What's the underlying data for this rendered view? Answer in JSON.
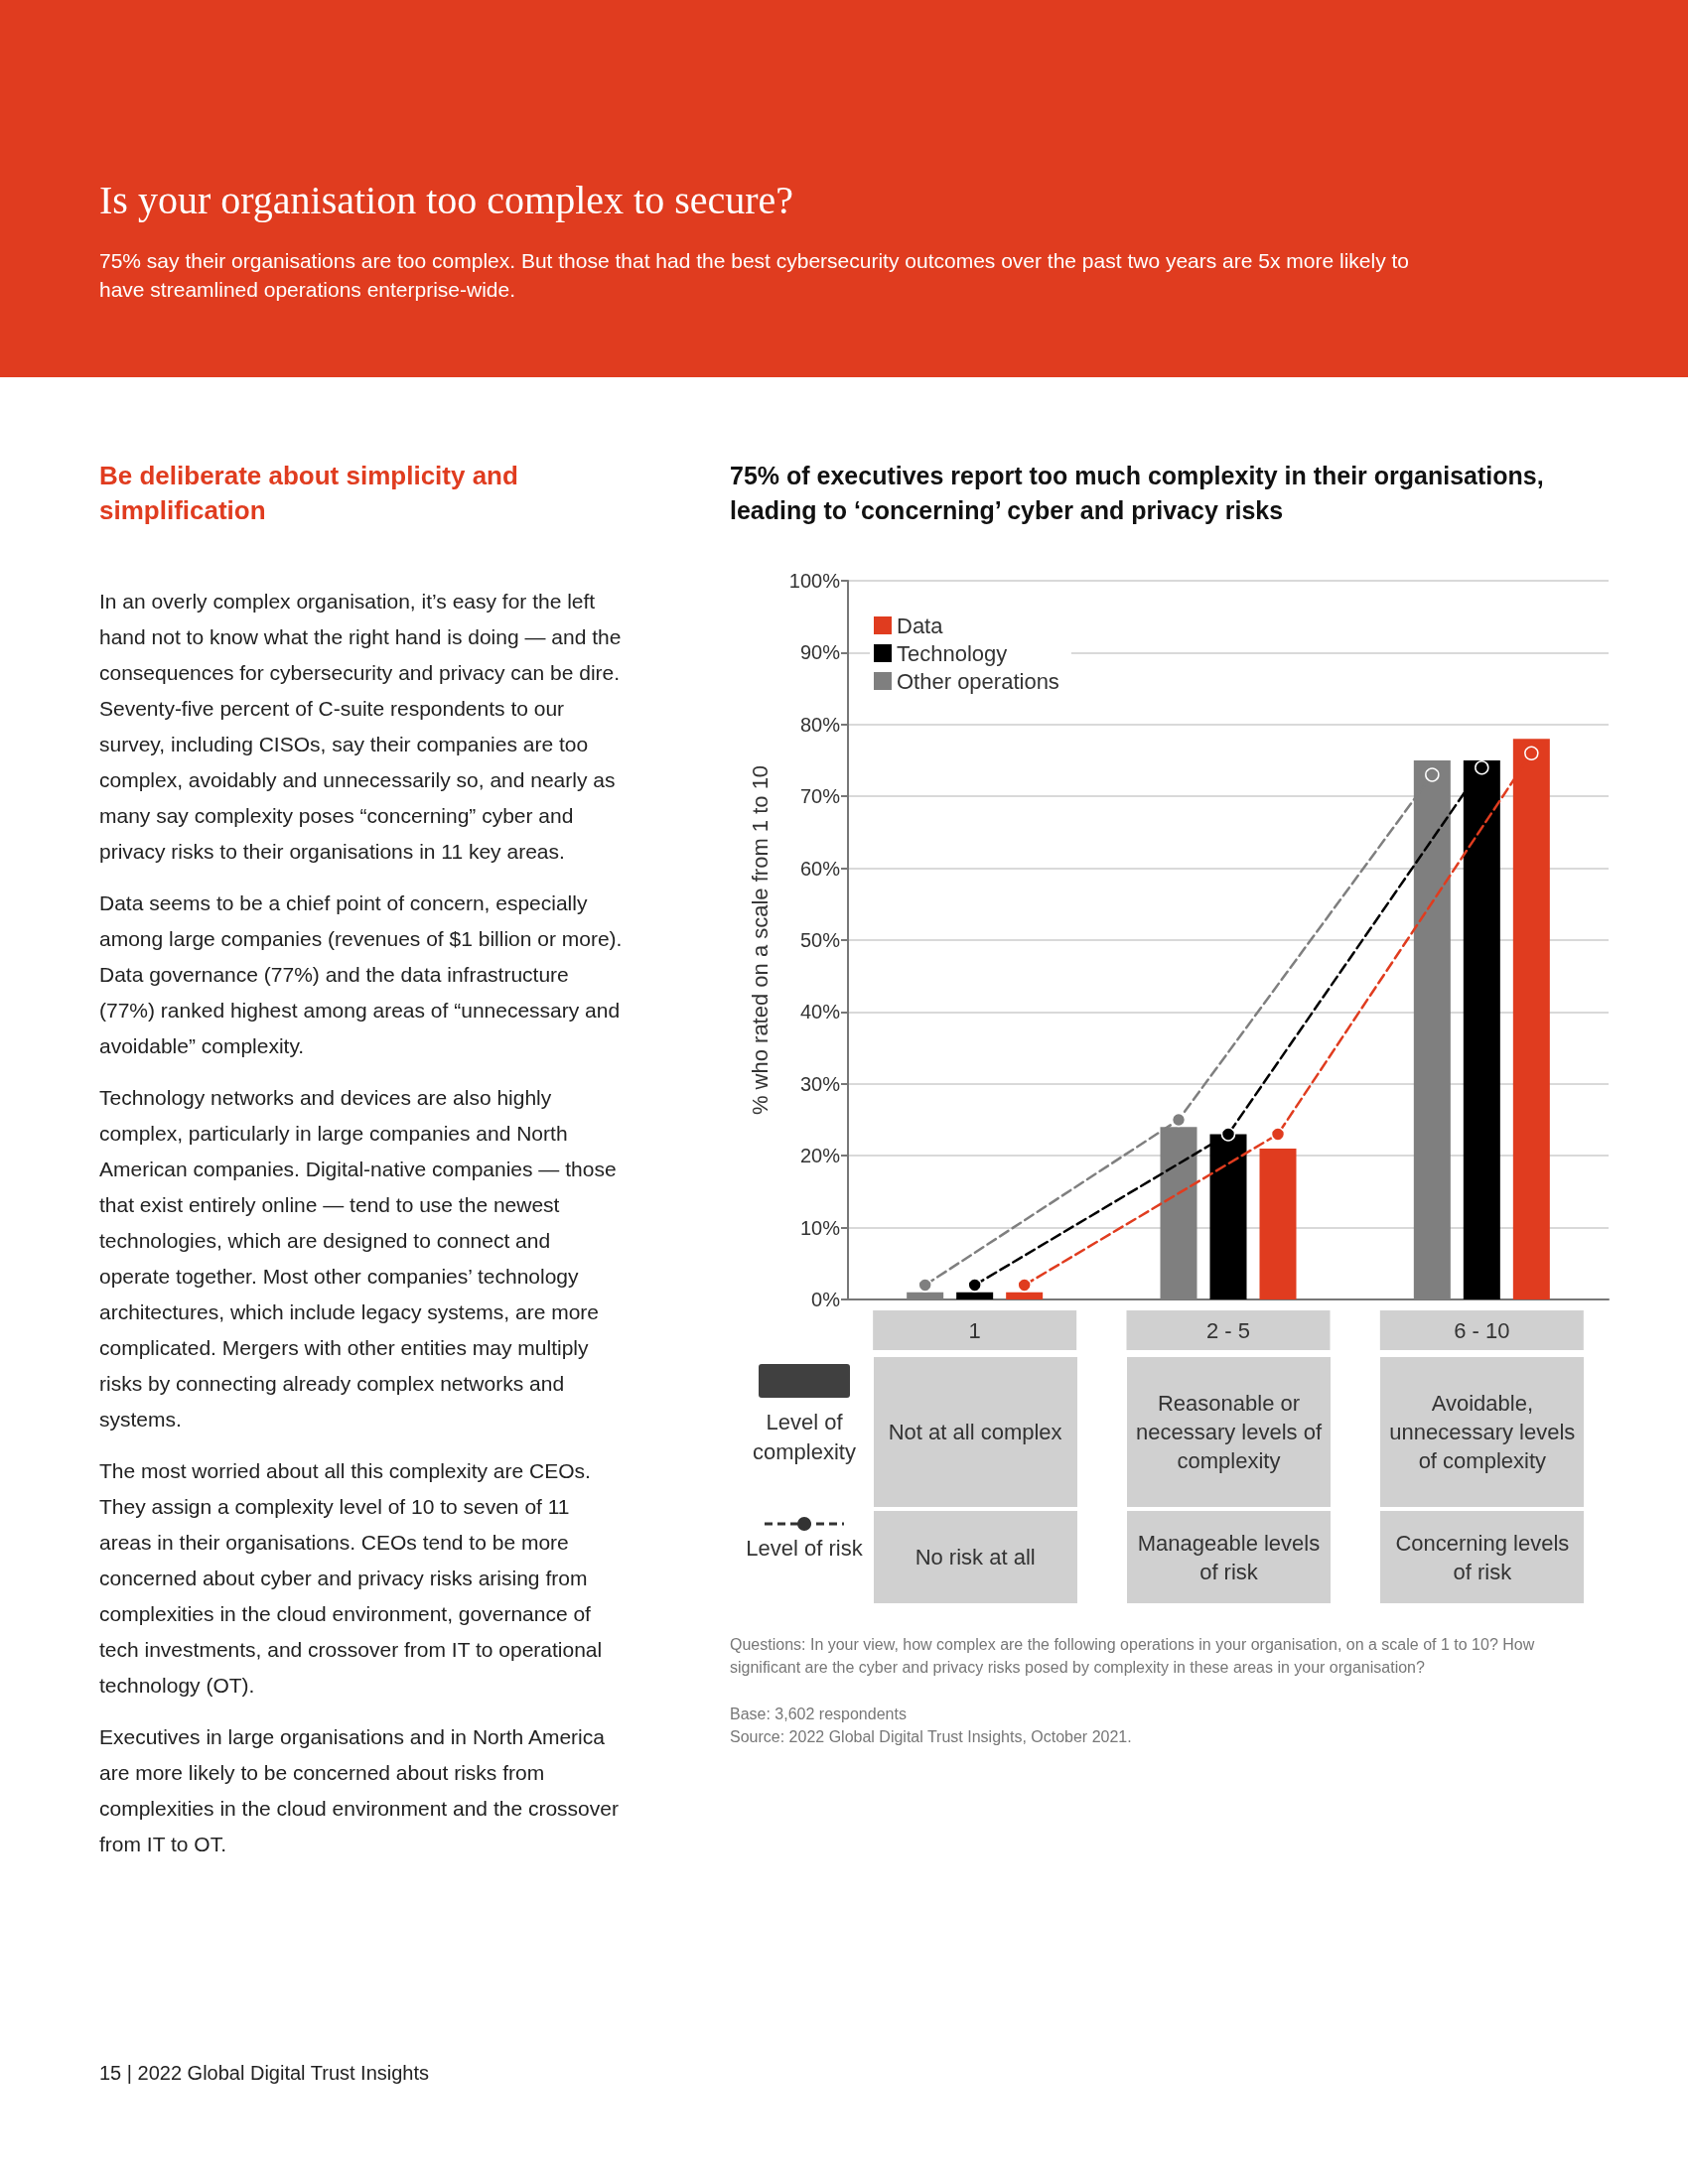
{
  "chart_data": {
    "type": "bar",
    "title": "75% of executives report too much complexity in their organisations, leading to ‘concerning’ cyber and privacy risks",
    "ylabel": "% who rated on a scale from 1 to 10",
    "categories": [
      "1",
      "2 - 5",
      "6 - 10"
    ],
    "series": [
      {
        "name": "Other operations",
        "color": "#7f7f7f",
        "values": [
          1,
          24,
          75
        ]
      },
      {
        "name": "Technology",
        "color": "#000000",
        "values": [
          1,
          23,
          75
        ]
      },
      {
        "name": "Data",
        "color": "#e03c1f",
        "values": [
          1,
          21,
          78
        ]
      },
      {
        "type": "line",
        "color": "#7f7f7f",
        "values": [
          2,
          25,
          73
        ]
      },
      {
        "type": "line",
        "color": "#000000",
        "values": [
          2,
          23,
          74
        ]
      },
      {
        "type": "line",
        "color": "#e03c1f",
        "values": [
          2,
          23,
          76
        ]
      }
    ],
    "ylim": [
      0,
      100
    ],
    "yticks": [
      {
        "value": 0,
        "label": "0%"
      },
      {
        "value": 10,
        "label": "10%"
      },
      {
        "value": 20,
        "label": "20%"
      },
      {
        "value": 30,
        "label": "30%"
      },
      {
        "value": 40,
        "label": "40%"
      },
      {
        "value": 50,
        "label": "50%"
      },
      {
        "value": 60,
        "label": "60%"
      },
      {
        "value": 70,
        "label": "70%"
      },
      {
        "value": 80,
        "label": "80%"
      },
      {
        "value": 90,
        "label": "90%"
      },
      {
        "value": 100,
        "label": "100%"
      }
    ],
    "grid": "y",
    "legend": "top left",
    "marker": "circle",
    "line_style": "dashed",
    "annotations": [
      "Is your organisation too complex to secure?",
      "75% say their organisations are too complex. But those that had the best cybersecurity outcomes over the past two years are 5x more likely to have streamlined operations enterprise-wide.",
      "Be deliberate about simplicity and simplification",
      "In an overly complex organisation, it’s easy for the left hand not to know what the right hand is doing — and the consequences for cybersecurity and privacy can be dire. Seventy-five percent of C-suite respondents to our survey, including CISOs, say their companies are too complex, avoidably and unnecessarily so, and nearly as many say complexity poses “concerning” cyber and privacy risks to their organisations in 11 key areas.",
      "Data seems to be a chief point of concern, especially among large companies (revenues of $1 billion or more). Data governance (77%) and the data infrastructure (77%) ranked highest among areas of “unnecessary and avoidable” complexity.",
      "Technology networks and devices are also highly complex, particularly in large companies and North American companies. Digital-native companies — those that exist entirely online — tend to use the newest technologies, which are designed to connect and operate together. Most other companies’ technology architectures, which include legacy systems, are more complicated. Mergers with other entities may multiply risks by connecting already complex networks and systems.",
      "The most worried about all this complexity are CEOs. They assign a complexity level of 10 to seven of 11 areas in their organisations. CEOs tend to be more concerned about cyber and privacy risks arising from complexities in the cloud environment, governance of tech investments, and crossover from IT to operational technology (OT).",
      "Executives in large organisations and in North America are more likely to be concerned about risks from complexities in the cloud environment and the crossover from IT to OT.",
      "Level of complexity",
      "Level of risk",
      "Not at all complex",
      "Reasonable or necessary levels of complexity",
      "Avoidable, unnecessary levels of complexity",
      "No risk at all",
      "Manageable levels of risk",
      "Concerning levels of risk",
      "Questions: In your view, how complex are the following operations in your organisation, on a scale of 1 to 10? How significant are the cyber and privacy risks posed by complexity in these areas in your organisation?",
      "Base: 3,602 respondents",
      "Source: 2022 Global Digital Trust Insights, October 2021.",
      "15 | 2022 Global Digital Trust Insights"
    ]
  }
}
